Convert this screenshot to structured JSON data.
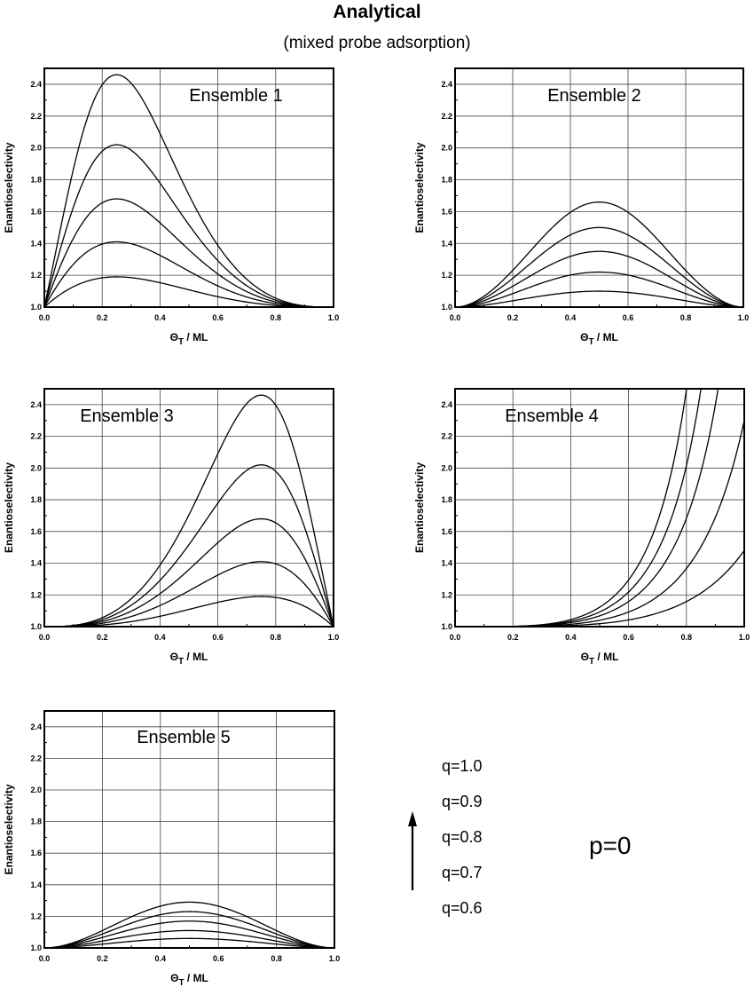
{
  "figure": {
    "title": "Analytical",
    "subtitle": "(mixed probe adsorption)"
  },
  "legend": {
    "q_labels": [
      "q=1.0",
      "q=0.9",
      "q=0.8",
      "q=0.7",
      "q=0.6"
    ],
    "arrow": "arrow-up-icon",
    "p_label": "p=0"
  },
  "chart_data": [
    {
      "type": "line",
      "title": "Ensemble 1",
      "xlabel_main": "Θ",
      "xlabel_sub": "T",
      "xlabel_rest": " / ML",
      "ylabel": "Enantioselectivity",
      "xlim": [
        0.0,
        1.0
      ],
      "ylim": [
        1.0,
        2.5
      ],
      "xticks": [
        "0.0",
        "0.2",
        "0.4",
        "0.6",
        "0.8",
        "1.0"
      ],
      "yticks": [
        "1.0",
        "1.2",
        "1.4",
        "1.6",
        "1.8",
        "2.0",
        "2.2",
        "2.4"
      ],
      "grid": true,
      "x": [
        0.0,
        0.1,
        0.2,
        0.25,
        0.3,
        0.4,
        0.5,
        0.6,
        0.7,
        0.8,
        0.9,
        1.0
      ],
      "series": [
        {
          "name": "q=1.0",
          "values": [
            1.0,
            1.75,
            2.39,
            2.46,
            2.42,
            2.09,
            1.71,
            1.39,
            1.17,
            1.05,
            1.01,
            1.0
          ]
        },
        {
          "name": "q=0.9",
          "values": [
            1.0,
            1.55,
            1.97,
            2.02,
            1.99,
            1.78,
            1.55,
            1.31,
            1.14,
            1.04,
            1.01,
            1.0
          ]
        },
        {
          "name": "q=0.8",
          "values": [
            1.0,
            1.39,
            1.65,
            1.68,
            1.66,
            1.54,
            1.39,
            1.22,
            1.1,
            1.03,
            1.0,
            1.0
          ]
        },
        {
          "name": "q=0.7",
          "values": [
            1.0,
            1.23,
            1.39,
            1.41,
            1.4,
            1.33,
            1.24,
            1.14,
            1.07,
            1.02,
            1.0,
            1.0
          ]
        },
        {
          "name": "q=0.6",
          "values": [
            1.0,
            1.11,
            1.18,
            1.19,
            1.18,
            1.15,
            1.11,
            1.07,
            1.03,
            1.01,
            1.0,
            1.0
          ]
        }
      ]
    },
    {
      "type": "line",
      "title": "Ensemble 2",
      "xlabel_main": "Θ",
      "xlabel_sub": "T",
      "xlabel_rest": " / ML",
      "ylabel": "Enantioselectivity",
      "xlim": [
        0.0,
        1.0
      ],
      "ylim": [
        1.0,
        2.5
      ],
      "xticks": [
        "0.0",
        "0.2",
        "0.4",
        "0.6",
        "0.8",
        "1.0"
      ],
      "yticks": [
        "1.0",
        "1.2",
        "1.4",
        "1.6",
        "1.8",
        "2.0",
        "2.2",
        "2.4"
      ],
      "grid": true,
      "x": [
        0.0,
        0.1,
        0.2,
        0.3,
        0.4,
        0.5,
        0.6,
        0.7,
        0.8,
        0.9,
        1.0
      ],
      "series": [
        {
          "name": "q=1.0",
          "values": [
            1.0,
            1.07,
            1.23,
            1.43,
            1.6,
            1.66,
            1.6,
            1.43,
            1.23,
            1.07,
            1.0
          ]
        },
        {
          "name": "q=0.9",
          "values": [
            1.0,
            1.05,
            1.18,
            1.34,
            1.46,
            1.5,
            1.46,
            1.34,
            1.18,
            1.05,
            1.0
          ]
        },
        {
          "name": "q=0.8",
          "values": [
            1.0,
            1.04,
            1.13,
            1.24,
            1.32,
            1.35,
            1.32,
            1.24,
            1.13,
            1.04,
            1.0
          ]
        },
        {
          "name": "q=0.7",
          "values": [
            1.0,
            1.02,
            1.08,
            1.14,
            1.2,
            1.22,
            1.2,
            1.14,
            1.08,
            1.02,
            1.0
          ]
        },
        {
          "name": "q=0.6",
          "values": [
            1.0,
            1.01,
            1.04,
            1.07,
            1.09,
            1.1,
            1.09,
            1.07,
            1.04,
            1.01,
            1.0
          ]
        }
      ]
    },
    {
      "type": "line",
      "title": "Ensemble 3",
      "xlabel_main": "Θ",
      "xlabel_sub": "T",
      "xlabel_rest": " / ML",
      "ylabel": "Enantioselectivity",
      "xlim": [
        0.0,
        1.0
      ],
      "ylim": [
        1.0,
        2.5
      ],
      "xticks": [
        "0.0",
        "0.2",
        "0.4",
        "0.6",
        "0.8",
        "1.0"
      ],
      "yticks": [
        "1.0",
        "1.2",
        "1.4",
        "1.6",
        "1.8",
        "2.0",
        "2.2",
        "2.4"
      ],
      "grid": true,
      "x": [
        0.0,
        0.1,
        0.2,
        0.3,
        0.4,
        0.5,
        0.6,
        0.7,
        0.75,
        0.8,
        0.9,
        1.0
      ],
      "series": [
        {
          "name": "q=1.0",
          "values": [
            1.0,
            1.01,
            1.05,
            1.17,
            1.39,
            1.71,
            2.09,
            2.42,
            2.46,
            2.39,
            1.75,
            1.0
          ]
        },
        {
          "name": "q=0.9",
          "values": [
            1.0,
            1.01,
            1.04,
            1.14,
            1.31,
            1.55,
            1.78,
            1.99,
            2.02,
            1.97,
            1.55,
            1.0
          ]
        },
        {
          "name": "q=0.8",
          "values": [
            1.0,
            1.0,
            1.03,
            1.1,
            1.22,
            1.39,
            1.54,
            1.66,
            1.68,
            1.65,
            1.39,
            1.0
          ]
        },
        {
          "name": "q=0.7",
          "values": [
            1.0,
            1.0,
            1.02,
            1.07,
            1.14,
            1.24,
            1.33,
            1.4,
            1.41,
            1.39,
            1.23,
            1.0
          ]
        },
        {
          "name": "q=0.6",
          "values": [
            1.0,
            1.0,
            1.01,
            1.03,
            1.07,
            1.11,
            1.15,
            1.18,
            1.19,
            1.18,
            1.11,
            1.0
          ]
        }
      ]
    },
    {
      "type": "line",
      "title": "Ensemble 4",
      "xlabel_main": "Θ",
      "xlabel_sub": "T",
      "xlabel_rest": " / ML",
      "ylabel": "Enantioselectivity",
      "xlim": [
        0.0,
        1.0
      ],
      "ylim": [
        1.0,
        2.5
      ],
      "xticks": [
        "0.0",
        "0.2",
        "0.4",
        "0.6",
        "0.8",
        "1.0"
      ],
      "yticks": [
        "1.0",
        "1.2",
        "1.4",
        "1.6",
        "1.8",
        "2.0",
        "2.2",
        "2.4"
      ],
      "grid": true,
      "x": [
        0.0,
        0.2,
        0.3,
        0.4,
        0.5,
        0.6,
        0.7,
        0.8,
        0.85,
        0.91,
        1.0
      ],
      "series": [
        {
          "name": "q=1.0",
          "values": [
            1.0,
            1.0,
            1.01,
            1.05,
            1.13,
            1.31,
            1.72,
            2.5,
            null,
            null,
            null
          ]
        },
        {
          "name": "q=0.9",
          "values": [
            1.0,
            1.0,
            1.01,
            1.04,
            1.1,
            1.23,
            1.51,
            2.02,
            2.5,
            null,
            null
          ]
        },
        {
          "name": "q=0.8",
          "values": [
            1.0,
            1.0,
            1.01,
            1.03,
            1.07,
            1.17,
            1.36,
            1.68,
            1.97,
            2.5,
            null
          ]
        },
        {
          "name": "q=0.7",
          "values": [
            1.0,
            1.0,
            1.0,
            1.02,
            1.04,
            1.09,
            1.18,
            1.37,
            1.51,
            1.73,
            2.3
          ]
        },
        {
          "name": "q=0.6",
          "values": [
            1.0,
            1.0,
            1.0,
            1.01,
            1.02,
            1.04,
            1.08,
            1.16,
            1.22,
            1.3,
            1.48
          ]
        }
      ]
    },
    {
      "type": "line",
      "title": "Ensemble 5",
      "xlabel_main": "Θ",
      "xlabel_sub": "T",
      "xlabel_rest": " / ML",
      "ylabel": "Enantioselectivity",
      "xlim": [
        0.0,
        1.0
      ],
      "ylim": [
        1.0,
        2.5
      ],
      "xticks": [
        "0.0",
        "0.2",
        "0.4",
        "0.6",
        "0.8",
        "1.0"
      ],
      "yticks": [
        "1.0",
        "1.2",
        "1.4",
        "1.6",
        "1.8",
        "2.0",
        "2.2",
        "2.4"
      ],
      "grid": true,
      "x": [
        0.0,
        0.1,
        0.2,
        0.3,
        0.4,
        0.5,
        0.6,
        0.7,
        0.8,
        0.9,
        1.0
      ],
      "series": [
        {
          "name": "q=1.0",
          "values": [
            1.0,
            1.03,
            1.11,
            1.21,
            1.27,
            1.29,
            1.27,
            1.21,
            1.11,
            1.03,
            1.0
          ]
        },
        {
          "name": "q=0.9",
          "values": [
            1.0,
            1.03,
            1.09,
            1.16,
            1.21,
            1.23,
            1.21,
            1.16,
            1.09,
            1.03,
            1.0
          ]
        },
        {
          "name": "q=0.8",
          "values": [
            1.0,
            1.02,
            1.06,
            1.12,
            1.16,
            1.17,
            1.16,
            1.12,
            1.06,
            1.02,
            1.0
          ]
        },
        {
          "name": "q=0.7",
          "values": [
            1.0,
            1.01,
            1.04,
            1.07,
            1.1,
            1.11,
            1.1,
            1.07,
            1.04,
            1.01,
            1.0
          ]
        },
        {
          "name": "q=0.6",
          "values": [
            1.0,
            1.0,
            1.02,
            1.04,
            1.05,
            1.06,
            1.05,
            1.04,
            1.02,
            1.0,
            1.0
          ]
        }
      ]
    }
  ]
}
